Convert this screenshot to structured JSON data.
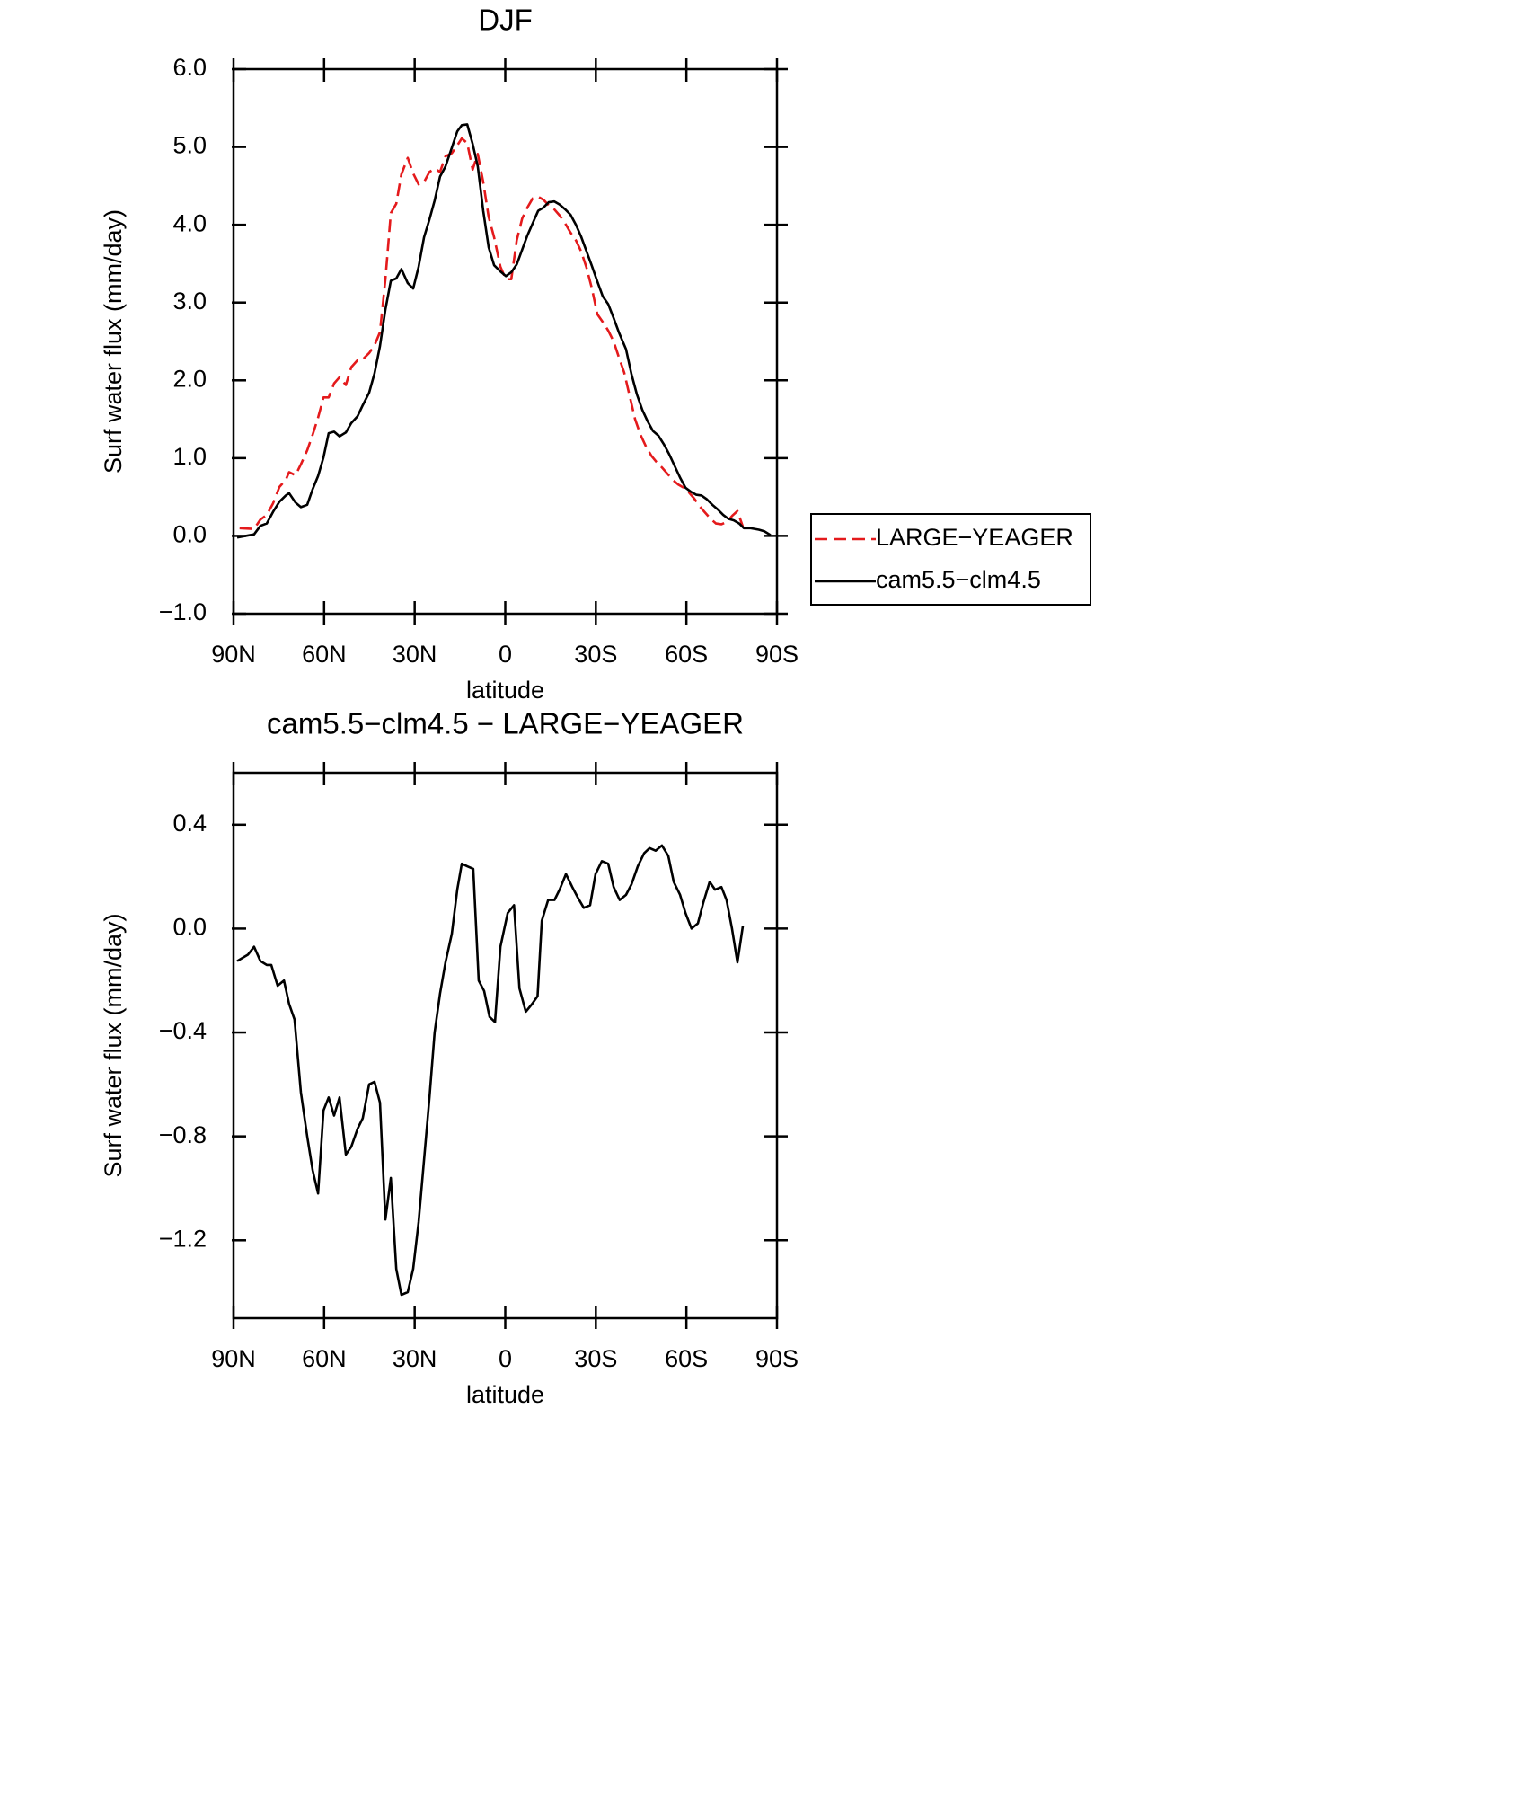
{
  "chart_data": [
    {
      "type": "line",
      "title": "DJF",
      "xlabel": "latitude",
      "ylabel": "Surf water flux (mm/day)",
      "xlim": [
        90,
        -90
      ],
      "xticks": [
        {
          "value": 90,
          "label": "90N"
        },
        {
          "value": 60,
          "label": "60N"
        },
        {
          "value": 30,
          "label": "30N"
        },
        0,
        {
          "value": -30,
          "label": "30S"
        },
        {
          "value": -60,
          "label": "60S"
        },
        {
          "value": -90,
          "label": "90S"
        }
      ],
      "ylim": [
        -1,
        6
      ],
      "yticks": [
        {
          "value": -1,
          "label": "−1.0"
        },
        {
          "value": 0,
          "label": "0.0"
        },
        {
          "value": 1,
          "label": "1.0"
        },
        {
          "value": 2,
          "label": "2.0"
        },
        {
          "value": 3,
          "label": "3.0"
        },
        {
          "value": 4,
          "label": "4.0"
        },
        {
          "value": 5,
          "label": "5.0"
        },
        {
          "value": 6,
          "label": "6.0"
        }
      ],
      "legend": "right",
      "series": [
        {
          "name": "LARGE−YEAGER",
          "color": "#e41a1c",
          "dash": "dashed",
          "x": [
            88.0,
            83.2,
            81.1,
            79.0,
            76.9,
            74.8,
            72.7,
            71.6,
            69.5,
            67.7,
            65.6,
            63.8,
            62.0,
            60.2,
            58.5,
            56.7,
            54.9,
            52.8,
            51.0,
            48.9,
            47.2,
            45.1,
            43.3,
            41.5,
            39.7,
            37.9,
            36.1,
            34.4,
            32.3,
            30.5,
            28.7,
            26.9,
            25.1,
            23.4,
            21.6,
            19.8,
            17.7,
            15.9,
            14.4,
            12.6,
            10.8,
            9.1,
            7.3,
            5.5,
            3.7,
            1.6,
            -0.2,
            -2.0,
            -3.8,
            -5.6,
            -7.3,
            -9.1,
            -10.9,
            -12.7,
            -14.4,
            -16.2,
            -18.0,
            -19.8,
            -21.6,
            -23.4,
            -25.1,
            -26.9,
            -28.7,
            -30.5,
            -32.3,
            -34.1,
            -35.9,
            -37.6,
            -39.4,
            -41.2,
            -43.0,
            -44.8,
            -46.6,
            -48.4,
            -50.1,
            -51.9,
            -53.7,
            -55.5,
            -57.3,
            -59.1,
            -60.8,
            -62.6,
            -64.4,
            -66.2,
            -68.0,
            -69.8,
            -71.6,
            -73.4,
            -75.2,
            -76.9,
            -78.7
          ],
          "values": [
            0.1,
            0.09,
            0.21,
            0.27,
            0.42,
            0.63,
            0.72,
            0.82,
            0.78,
            0.92,
            1.1,
            1.3,
            1.52,
            1.78,
            1.78,
            1.96,
            2.04,
            1.94,
            2.17,
            2.26,
            2.27,
            2.35,
            2.45,
            2.62,
            3.3,
            4.15,
            4.27,
            4.65,
            4.86,
            4.66,
            4.52,
            4.55,
            4.68,
            4.72,
            4.68,
            4.88,
            4.92,
            5.02,
            5.11,
            5.05,
            4.71,
            4.91,
            4.55,
            4.1,
            3.84,
            3.46,
            3.3,
            3.3,
            3.8,
            4.08,
            4.22,
            4.34,
            4.36,
            4.32,
            4.25,
            4.2,
            4.12,
            4.02,
            3.9,
            3.8,
            3.66,
            3.45,
            3.18,
            2.85,
            2.75,
            2.64,
            2.5,
            2.3,
            2.1,
            1.8,
            1.5,
            1.3,
            1.15,
            1.03,
            0.95,
            0.88,
            0.8,
            0.72,
            0.66,
            0.62,
            0.56,
            0.48,
            0.38,
            0.3,
            0.22,
            0.16,
            0.15,
            0.18,
            0.26,
            0.32,
            0.12
          ]
        },
        {
          "name": "cam5.5−clm4.5",
          "color": "#000000",
          "dash": "solid",
          "x": [
            88.8,
            83.2,
            81.1,
            79.0,
            76.9,
            74.8,
            72.7,
            71.6,
            69.5,
            67.7,
            65.6,
            63.8,
            62.0,
            60.2,
            58.5,
            56.7,
            54.9,
            52.8,
            51.0,
            48.9,
            47.2,
            45.1,
            43.3,
            41.5,
            39.7,
            37.9,
            36.1,
            34.4,
            32.3,
            30.5,
            28.7,
            26.9,
            25.1,
            23.4,
            21.6,
            19.8,
            17.7,
            15.9,
            14.4,
            12.6,
            10.8,
            9.1,
            7.3,
            5.5,
            3.7,
            1.6,
            -0.2,
            -2.0,
            -3.8,
            -5.6,
            -7.3,
            -9.1,
            -10.9,
            -12.6,
            -14.4,
            -16.2,
            -18.0,
            -19.8,
            -21.6,
            -23.4,
            -25.1,
            -26.9,
            -28.7,
            -30.5,
            -32.3,
            -34.1,
            -35.9,
            -37.6,
            -40.0,
            -41.8,
            -43.6,
            -45.4,
            -47.2,
            -48.9,
            -50.7,
            -52.5,
            -54.3,
            -56.1,
            -57.9,
            -59.7,
            -61.4,
            -63.2,
            -65.0,
            -66.8,
            -68.6,
            -70.4,
            -72.2,
            -73.9,
            -75.7,
            -77.5,
            -79.0,
            -81.1,
            -84.0,
            -85.8,
            -87.9
          ],
          "values": [
            -0.02,
            0.02,
            0.13,
            0.16,
            0.31,
            0.44,
            0.52,
            0.55,
            0.43,
            0.37,
            0.4,
            0.6,
            0.77,
            1.01,
            1.32,
            1.34,
            1.28,
            1.33,
            1.45,
            1.54,
            1.68,
            1.84,
            2.09,
            2.44,
            2.91,
            3.28,
            3.31,
            3.43,
            3.25,
            3.18,
            3.46,
            3.84,
            4.07,
            4.31,
            4.62,
            4.75,
            4.99,
            5.2,
            5.28,
            5.29,
            5.04,
            4.75,
            4.18,
            3.71,
            3.48,
            3.4,
            3.34,
            3.39,
            3.49,
            3.68,
            3.86,
            4.02,
            4.18,
            4.22,
            4.29,
            4.3,
            4.26,
            4.2,
            4.13,
            4.0,
            3.85,
            3.66,
            3.47,
            3.27,
            3.08,
            2.98,
            2.8,
            2.62,
            2.4,
            2.08,
            1.82,
            1.62,
            1.47,
            1.35,
            1.29,
            1.18,
            1.05,
            0.9,
            0.75,
            0.62,
            0.57,
            0.53,
            0.52,
            0.47,
            0.4,
            0.34,
            0.27,
            0.22,
            0.2,
            0.16,
            0.1,
            0.1,
            0.08,
            0.06,
            0.01
          ]
        }
      ]
    },
    {
      "type": "line",
      "title": "cam5.5−clm4.5 − LARGE−YEAGER",
      "xlabel": "latitude",
      "ylabel": "Surf water flux (mm/day)",
      "xlim": [
        90,
        -90
      ],
      "xticks": [
        {
          "value": 90,
          "label": "90N"
        },
        {
          "value": 60,
          "label": "60N"
        },
        {
          "value": 30,
          "label": "30N"
        },
        0,
        {
          "value": -30,
          "label": "30S"
        },
        {
          "value": -60,
          "label": "60S"
        },
        {
          "value": -90,
          "label": "90S"
        }
      ],
      "ylim": [
        -1.5,
        0.6
      ],
      "yticks": [
        {
          "value": -1.2,
          "label": "−1.2"
        },
        {
          "value": -0.8,
          "label": "−0.8"
        },
        {
          "value": -0.4,
          "label": "−0.4"
        },
        {
          "value": 0,
          "label": "0.0"
        },
        0.4
      ],
      "series": [
        {
          "color": "#000000",
          "dash": "solid",
          "x": [
            88.8,
            85.2,
            83.2,
            81.1,
            79.0,
            77.5,
            75.4,
            73.3,
            71.6,
            69.8,
            67.7,
            65.6,
            63.8,
            62.0,
            60.2,
            58.5,
            56.7,
            54.9,
            52.8,
            51.0,
            48.9,
            47.2,
            45.1,
            43.3,
            41.5,
            39.7,
            37.9,
            36.1,
            34.4,
            32.3,
            30.5,
            28.7,
            26.9,
            25.1,
            23.4,
            21.6,
            19.8,
            17.7,
            15.9,
            14.4,
            12.6,
            10.6,
            8.8,
            7.0,
            5.2,
            3.4,
            1.6,
            -0.8,
            -2.9,
            -4.7,
            -6.8,
            -8.9,
            -10.7,
            -12.1,
            -14.2,
            -16.3,
            -18.0,
            -20.1,
            -22.2,
            -24.0,
            -26.0,
            -28.1,
            -29.9,
            -32.0,
            -34.1,
            -35.9,
            -37.9,
            -40.0,
            -41.8,
            -43.9,
            -46.0,
            -47.8,
            -49.8,
            -51.9,
            -54.0,
            -55.8,
            -57.9,
            -59.7,
            -61.7,
            -63.8,
            -65.6,
            -67.7,
            -69.5,
            -71.6,
            -73.3,
            -75.1,
            -76.9,
            -78.7
          ],
          "values": [
            -0.125,
            -0.1,
            -0.07,
            -0.125,
            -0.14,
            -0.14,
            -0.22,
            -0.2,
            -0.29,
            -0.35,
            -0.63,
            -0.8,
            -0.93,
            -1.02,
            -0.7,
            -0.65,
            -0.72,
            -0.65,
            -0.87,
            -0.84,
            -0.77,
            -0.73,
            -0.6,
            -0.59,
            -0.67,
            -1.12,
            -0.96,
            -1.31,
            -1.41,
            -1.4,
            -1.31,
            -1.13,
            -0.89,
            -0.65,
            -0.4,
            -0.25,
            -0.13,
            -0.02,
            0.15,
            0.25,
            0.24,
            0.23,
            -0.2,
            -0.24,
            -0.34,
            -0.36,
            -0.07,
            0.06,
            0.09,
            -0.23,
            -0.32,
            -0.29,
            -0.26,
            0.03,
            0.11,
            0.11,
            0.15,
            0.21,
            0.16,
            0.12,
            0.08,
            0.09,
            0.21,
            0.26,
            0.25,
            0.16,
            0.11,
            0.13,
            0.17,
            0.24,
            0.29,
            0.31,
            0.3,
            0.32,
            0.28,
            0.18,
            0.13,
            0.06,
            0,
            0.02,
            0.1,
            0.18,
            0.15,
            0.16,
            0.11,
            0,
            -0.13,
            0.01
          ]
        }
      ]
    }
  ]
}
